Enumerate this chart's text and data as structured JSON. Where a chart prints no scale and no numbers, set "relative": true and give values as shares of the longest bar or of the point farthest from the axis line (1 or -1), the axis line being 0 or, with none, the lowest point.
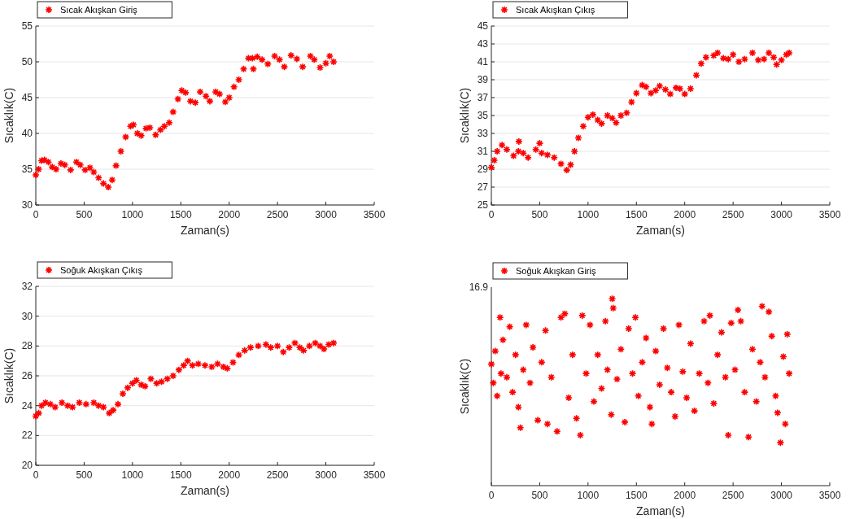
{
  "chart_data": [
    {
      "type": "scatter",
      "xlabel": "Zaman(s)",
      "ylabel": "Sıcaklık(C)",
      "xlim": [
        0,
        3500
      ],
      "xticks": [
        0,
        500,
        1000,
        1500,
        2000,
        2500,
        3000,
        3500
      ],
      "ylim": [
        30,
        55
      ],
      "yticks": [
        30,
        35,
        40,
        45,
        50,
        55
      ],
      "grid": "y",
      "legend": "top left",
      "marker": "cross",
      "series": [
        {
          "name": "Sıcak Akışkan Giriş",
          "color": "#ff0000",
          "x": [
            0,
            30,
            60,
            90,
            130,
            170,
            210,
            260,
            300,
            360,
            420,
            460,
            510,
            560,
            600,
            650,
            700,
            750,
            790,
            830,
            880,
            930,
            980,
            1010,
            1050,
            1090,
            1140,
            1180,
            1240,
            1290,
            1330,
            1380,
            1420,
            1470,
            1510,
            1550,
            1600,
            1650,
            1700,
            1760,
            1800,
            1860,
            1900,
            1960,
            2000,
            2050,
            2100,
            2150,
            2200,
            2240,
            2250,
            2290,
            2340,
            2400,
            2470,
            2520,
            2570,
            2640,
            2700,
            2760,
            2840,
            2880,
            2940,
            3000,
            3040,
            3080
          ],
          "values": [
            34.2,
            35,
            36.2,
            36.3,
            36,
            35.3,
            35,
            35.8,
            35.6,
            34.9,
            36,
            35.6,
            34.9,
            35.2,
            34.6,
            33.8,
            33,
            32.5,
            33.5,
            35.5,
            37.5,
            39.5,
            41,
            41.2,
            40,
            39.7,
            40.7,
            40.8,
            39.8,
            40.5,
            41,
            41.5,
            43,
            44.8,
            46,
            45.7,
            44.5,
            44.3,
            45.8,
            45.2,
            44.5,
            45.8,
            45.5,
            44.4,
            45,
            46.5,
            47.5,
            49,
            50.5,
            50.5,
            49,
            50.7,
            50.3,
            49.7,
            50.8,
            50.3,
            49.3,
            50.9,
            50.4,
            49.3,
            50.8,
            50.3,
            49.2,
            49.8,
            50.8,
            50
          ]
        }
      ]
    },
    {
      "type": "scatter",
      "xlabel": "Zaman(s)",
      "ylabel": "Sıcaklık(C)",
      "xlim": [
        0,
        3500
      ],
      "xticks": [
        0,
        500,
        1000,
        1500,
        2000,
        2500,
        3000,
        3500
      ],
      "ylim": [
        25,
        45
      ],
      "yticks": [
        25,
        27,
        29,
        31,
        33,
        35,
        37,
        39,
        41,
        43,
        45
      ],
      "grid": "y",
      "legend": "top left",
      "marker": "cross",
      "series": [
        {
          "name": "Sıcak Akışkan Çıkış",
          "color": "#ff0000",
          "x": [
            0,
            30,
            60,
            110,
            160,
            230,
            280,
            285,
            330,
            380,
            460,
            500,
            520,
            580,
            650,
            720,
            780,
            820,
            860,
            900,
            950,
            1000,
            1050,
            1100,
            1140,
            1200,
            1250,
            1290,
            1340,
            1400,
            1450,
            1500,
            1560,
            1600,
            1650,
            1700,
            1740,
            1800,
            1850,
            1910,
            1950,
            2000,
            2060,
            2120,
            2170,
            2220,
            2300,
            2340,
            2400,
            2450,
            2500,
            2560,
            2620,
            2700,
            2760,
            2820,
            2870,
            2920,
            2950,
            3000,
            3050,
            3080
          ],
          "values": [
            29.2,
            30,
            31,
            31.7,
            31.2,
            30.5,
            31,
            32.1,
            30.8,
            30.3,
            31.2,
            31.9,
            30.8,
            30.6,
            30.3,
            29.6,
            28.9,
            29.5,
            31,
            32.5,
            33.8,
            34.8,
            35.1,
            34.5,
            34.1,
            35,
            34.7,
            34.2,
            35,
            35.3,
            36.5,
            37.5,
            38.4,
            38.2,
            37.5,
            37.8,
            38.3,
            37.9,
            37.4,
            38.1,
            38,
            37.4,
            38,
            39.5,
            40.8,
            41.5,
            41.7,
            42,
            41.4,
            41.3,
            41.8,
            41,
            41.3,
            42,
            41.2,
            41.3,
            42,
            41.5,
            40.7,
            41.2,
            41.8,
            42
          ]
        }
      ]
    },
    {
      "type": "scatter",
      "xlabel": "Zaman(s)",
      "ylabel": "Sıcaklık(C)",
      "xlim": [
        0,
        3500
      ],
      "xticks": [
        0,
        500,
        1000,
        1500,
        2000,
        2500,
        3000,
        3500
      ],
      "ylim": [
        20,
        32
      ],
      "yticks": [
        20,
        22,
        24,
        26,
        28,
        30,
        32
      ],
      "grid": "y",
      "legend": "top left",
      "marker": "cross",
      "series": [
        {
          "name": "Soğuk Akışkan Çıkış",
          "color": "#ff0000",
          "x": [
            0,
            30,
            60,
            100,
            150,
            200,
            270,
            330,
            380,
            450,
            520,
            600,
            650,
            700,
            760,
            800,
            850,
            900,
            950,
            1000,
            1040,
            1090,
            1130,
            1190,
            1250,
            1300,
            1360,
            1420,
            1480,
            1530,
            1570,
            1620,
            1680,
            1750,
            1820,
            1880,
            1940,
            1980,
            2040,
            2100,
            2160,
            2220,
            2300,
            2380,
            2430,
            2500,
            2560,
            2620,
            2680,
            2730,
            2770,
            2830,
            2890,
            2940,
            2980,
            3030,
            3080
          ],
          "values": [
            23.3,
            23.5,
            24,
            24.2,
            24.1,
            23.9,
            24.2,
            24,
            23.9,
            24.2,
            24.1,
            24.2,
            24,
            23.9,
            23.5,
            23.7,
            24.1,
            24.8,
            25.2,
            25.5,
            25.7,
            25.4,
            25.3,
            25.8,
            25.5,
            25.6,
            25.8,
            26,
            26.4,
            26.7,
            27,
            26.7,
            26.8,
            26.7,
            26.6,
            26.8,
            26.6,
            26.5,
            26.9,
            27.4,
            27.7,
            27.9,
            28,
            28.1,
            27.9,
            28,
            27.6,
            27.9,
            28.2,
            27.9,
            27.7,
            28,
            28.2,
            28,
            27.8,
            28.1,
            28.2
          ]
        }
      ]
    },
    {
      "type": "scatter",
      "relative": true,
      "xlabel": "Zaman(s)",
      "ylabel": "Sıcaklık(C)",
      "xlim": [
        0,
        3500
      ],
      "xticks": [
        0,
        500,
        1000,
        1500,
        2000,
        2500,
        3000,
        3500
      ],
      "annotations": [
        "16.9"
      ],
      "legend": "top left",
      "marker": "cross",
      "series": [
        {
          "name": "Soğuk Akışkan Giriş",
          "color": "#ff0000",
          "x": [
            0,
            20,
            40,
            60,
            90,
            100,
            120,
            160,
            190,
            220,
            250,
            280,
            300,
            330,
            360,
            400,
            430,
            480,
            520,
            560,
            580,
            620,
            680,
            720,
            760,
            800,
            840,
            880,
            920,
            940,
            980,
            1020,
            1060,
            1100,
            1140,
            1180,
            1200,
            1240,
            1250,
            1260,
            1300,
            1340,
            1380,
            1420,
            1460,
            1490,
            1520,
            1560,
            1600,
            1640,
            1660,
            1700,
            1740,
            1780,
            1820,
            1860,
            1900,
            1940,
            1980,
            2020,
            2060,
            2100,
            2150,
            2200,
            2240,
            2260,
            2300,
            2340,
            2380,
            2420,
            2450,
            2480,
            2520,
            2550,
            2580,
            2620,
            2660,
            2700,
            2740,
            2780,
            2800,
            2830,
            2870,
            2900,
            2940,
            2960,
            2990,
            3020,
            3040,
            3060,
            3080
          ],
          "values": [
            0.65,
            0.55,
            0.72,
            0.48,
            0.9,
            0.6,
            0.78,
            0.58,
            0.85,
            0.5,
            0.7,
            0.42,
            0.31,
            0.62,
            0.86,
            0.55,
            0.74,
            0.35,
            0.66,
            0.83,
            0.33,
            0.58,
            0.29,
            0.9,
            0.92,
            0.47,
            0.7,
            0.36,
            0.27,
            0.91,
            0.6,
            0.86,
            0.45,
            0.7,
            0.52,
            0.88,
            0.62,
            0.38,
            1.0,
            0.95,
            0.57,
            0.73,
            0.34,
            0.84,
            0.6,
            0.9,
            0.48,
            0.66,
            0.79,
            0.42,
            0.33,
            0.72,
            0.54,
            0.84,
            0.63,
            0.5,
            0.37,
            0.86,
            0.61,
            0.47,
            0.76,
            0.4,
            0.6,
            0.88,
            0.55,
            0.91,
            0.44,
            0.7,
            0.82,
            0.58,
            0.27,
            0.87,
            0.62,
            0.94,
            0.88,
            0.5,
            0.26,
            0.73,
            0.45,
            0.66,
            0.96,
            0.58,
            0.93,
            0.8,
            0.48,
            0.39,
            0.23,
            0.69,
            0.33,
            0.81,
            0.6
          ]
        }
      ]
    }
  ]
}
